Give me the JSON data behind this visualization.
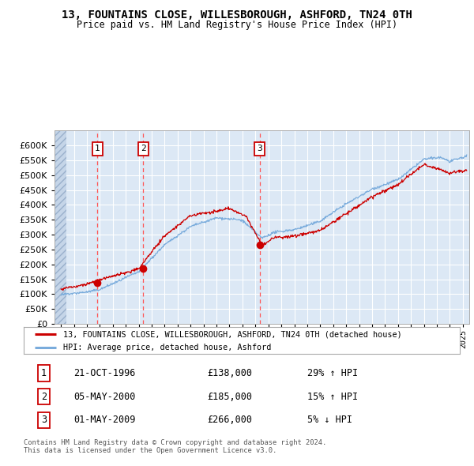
{
  "title": "13, FOUNTAINS CLOSE, WILLESBOROUGH, ASHFORD, TN24 0TH",
  "subtitle": "Price paid vs. HM Land Registry's House Price Index (HPI)",
  "ylim": [
    0,
    650000
  ],
  "yticks": [
    0,
    50000,
    100000,
    150000,
    200000,
    250000,
    300000,
    350000,
    400000,
    450000,
    500000,
    550000,
    600000
  ],
  "xlim_start": 1993.5,
  "xlim_end": 2025.5,
  "background_color": "#ffffff",
  "plot_bg_color": "#dce8f5",
  "hatch_bg_color": "#c5d5e8",
  "grid_color": "#ffffff",
  "sale_dates": [
    1996.81,
    2000.34,
    2009.33
  ],
  "sale_prices": [
    138000,
    185000,
    266000
  ],
  "sale_labels": [
    "1",
    "2",
    "3"
  ],
  "legend_line1": "13, FOUNTAINS CLOSE, WILLESBOROUGH, ASHFORD, TN24 0TH (detached house)",
  "legend_line2": "HPI: Average price, detached house, Ashford",
  "table_data": [
    [
      "1",
      "21-OCT-1996",
      "£138,000",
      "29% ↑ HPI"
    ],
    [
      "2",
      "05-MAY-2000",
      "£185,000",
      "15% ↑ HPI"
    ],
    [
      "3",
      "01-MAY-2009",
      "£266,000",
      "5% ↓ HPI"
    ]
  ],
  "footer": "Contains HM Land Registry data © Crown copyright and database right 2024.\nThis data is licensed under the Open Government Licence v3.0.",
  "red_line_color": "#cc0000",
  "blue_line_color": "#7aacdc",
  "dot_color": "#cc0000",
  "vline_color": "#ff5555"
}
